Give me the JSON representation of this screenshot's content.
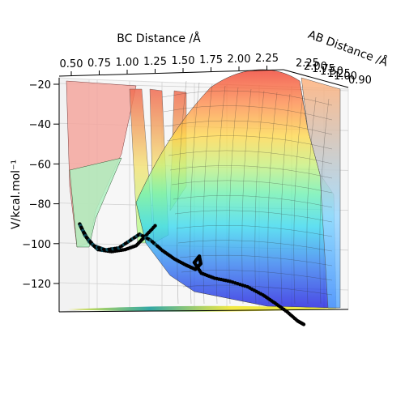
{
  "chart_data": {
    "type": "surface3d",
    "title": "",
    "xlabel": "BC Distance /Å",
    "ylabel": "AB Distance /Å",
    "zlabel": "V/kcal.mol⁻¹",
    "x_ticks": [
      "0.50",
      "0.75",
      "1.00",
      "1.25",
      "1.50",
      "1.75",
      "2.00",
      "2.25"
    ],
    "y_ticks": [
      "2.25",
      "2.00",
      "1.75",
      "1.50",
      "1.25",
      "1.00",
      "0.90"
    ],
    "z_ticks": [
      "−20",
      "−40",
      "−60",
      "−80",
      "−100",
      "−120"
    ],
    "z_values": [
      -20,
      -40,
      -60,
      -80,
      -100,
      -120
    ],
    "zlim": [
      -135,
      -18
    ],
    "colormap": "jet",
    "grid": true,
    "series": [
      {
        "kind": "trajectory",
        "color": "#000000",
        "points": [
          [
            1.25,
            0.9,
            -91
          ],
          [
            1.15,
            0.9,
            -97
          ],
          [
            1.08,
            0.9,
            -101
          ],
          [
            0.98,
            0.9,
            -103
          ],
          [
            0.86,
            0.9,
            -104
          ],
          [
            0.74,
            0.9,
            -103
          ],
          [
            0.66,
            0.9,
            -99
          ],
          [
            0.6,
            0.9,
            -93
          ],
          [
            0.57,
            0.92,
            -90
          ],
          [
            0.62,
            0.92,
            -96
          ],
          [
            0.7,
            0.92,
            -101
          ],
          [
            0.8,
            0.92,
            -103
          ],
          [
            0.92,
            0.92,
            -102
          ],
          [
            1.02,
            0.94,
            -98
          ],
          [
            1.1,
            0.94,
            -95
          ],
          [
            1.2,
            0.94,
            -98
          ],
          [
            1.3,
            0.96,
            -103
          ],
          [
            1.4,
            0.98,
            -107
          ],
          [
            1.5,
            1.0,
            -110
          ],
          [
            1.58,
            1.02,
            -112
          ],
          [
            1.62,
            1.05,
            -109
          ],
          [
            1.6,
            1.08,
            -105
          ],
          [
            1.55,
            1.1,
            -108
          ],
          [
            1.6,
            1.15,
            -113
          ],
          [
            1.7,
            1.22,
            -115
          ],
          [
            1.82,
            1.3,
            -116
          ],
          [
            1.95,
            1.4,
            -118
          ],
          [
            2.05,
            1.55,
            -121
          ],
          [
            2.12,
            1.7,
            -124
          ],
          [
            2.18,
            1.9,
            -127
          ],
          [
            2.22,
            2.1,
            -130
          ],
          [
            2.25,
            2.2,
            -131
          ]
        ]
      }
    ]
  }
}
